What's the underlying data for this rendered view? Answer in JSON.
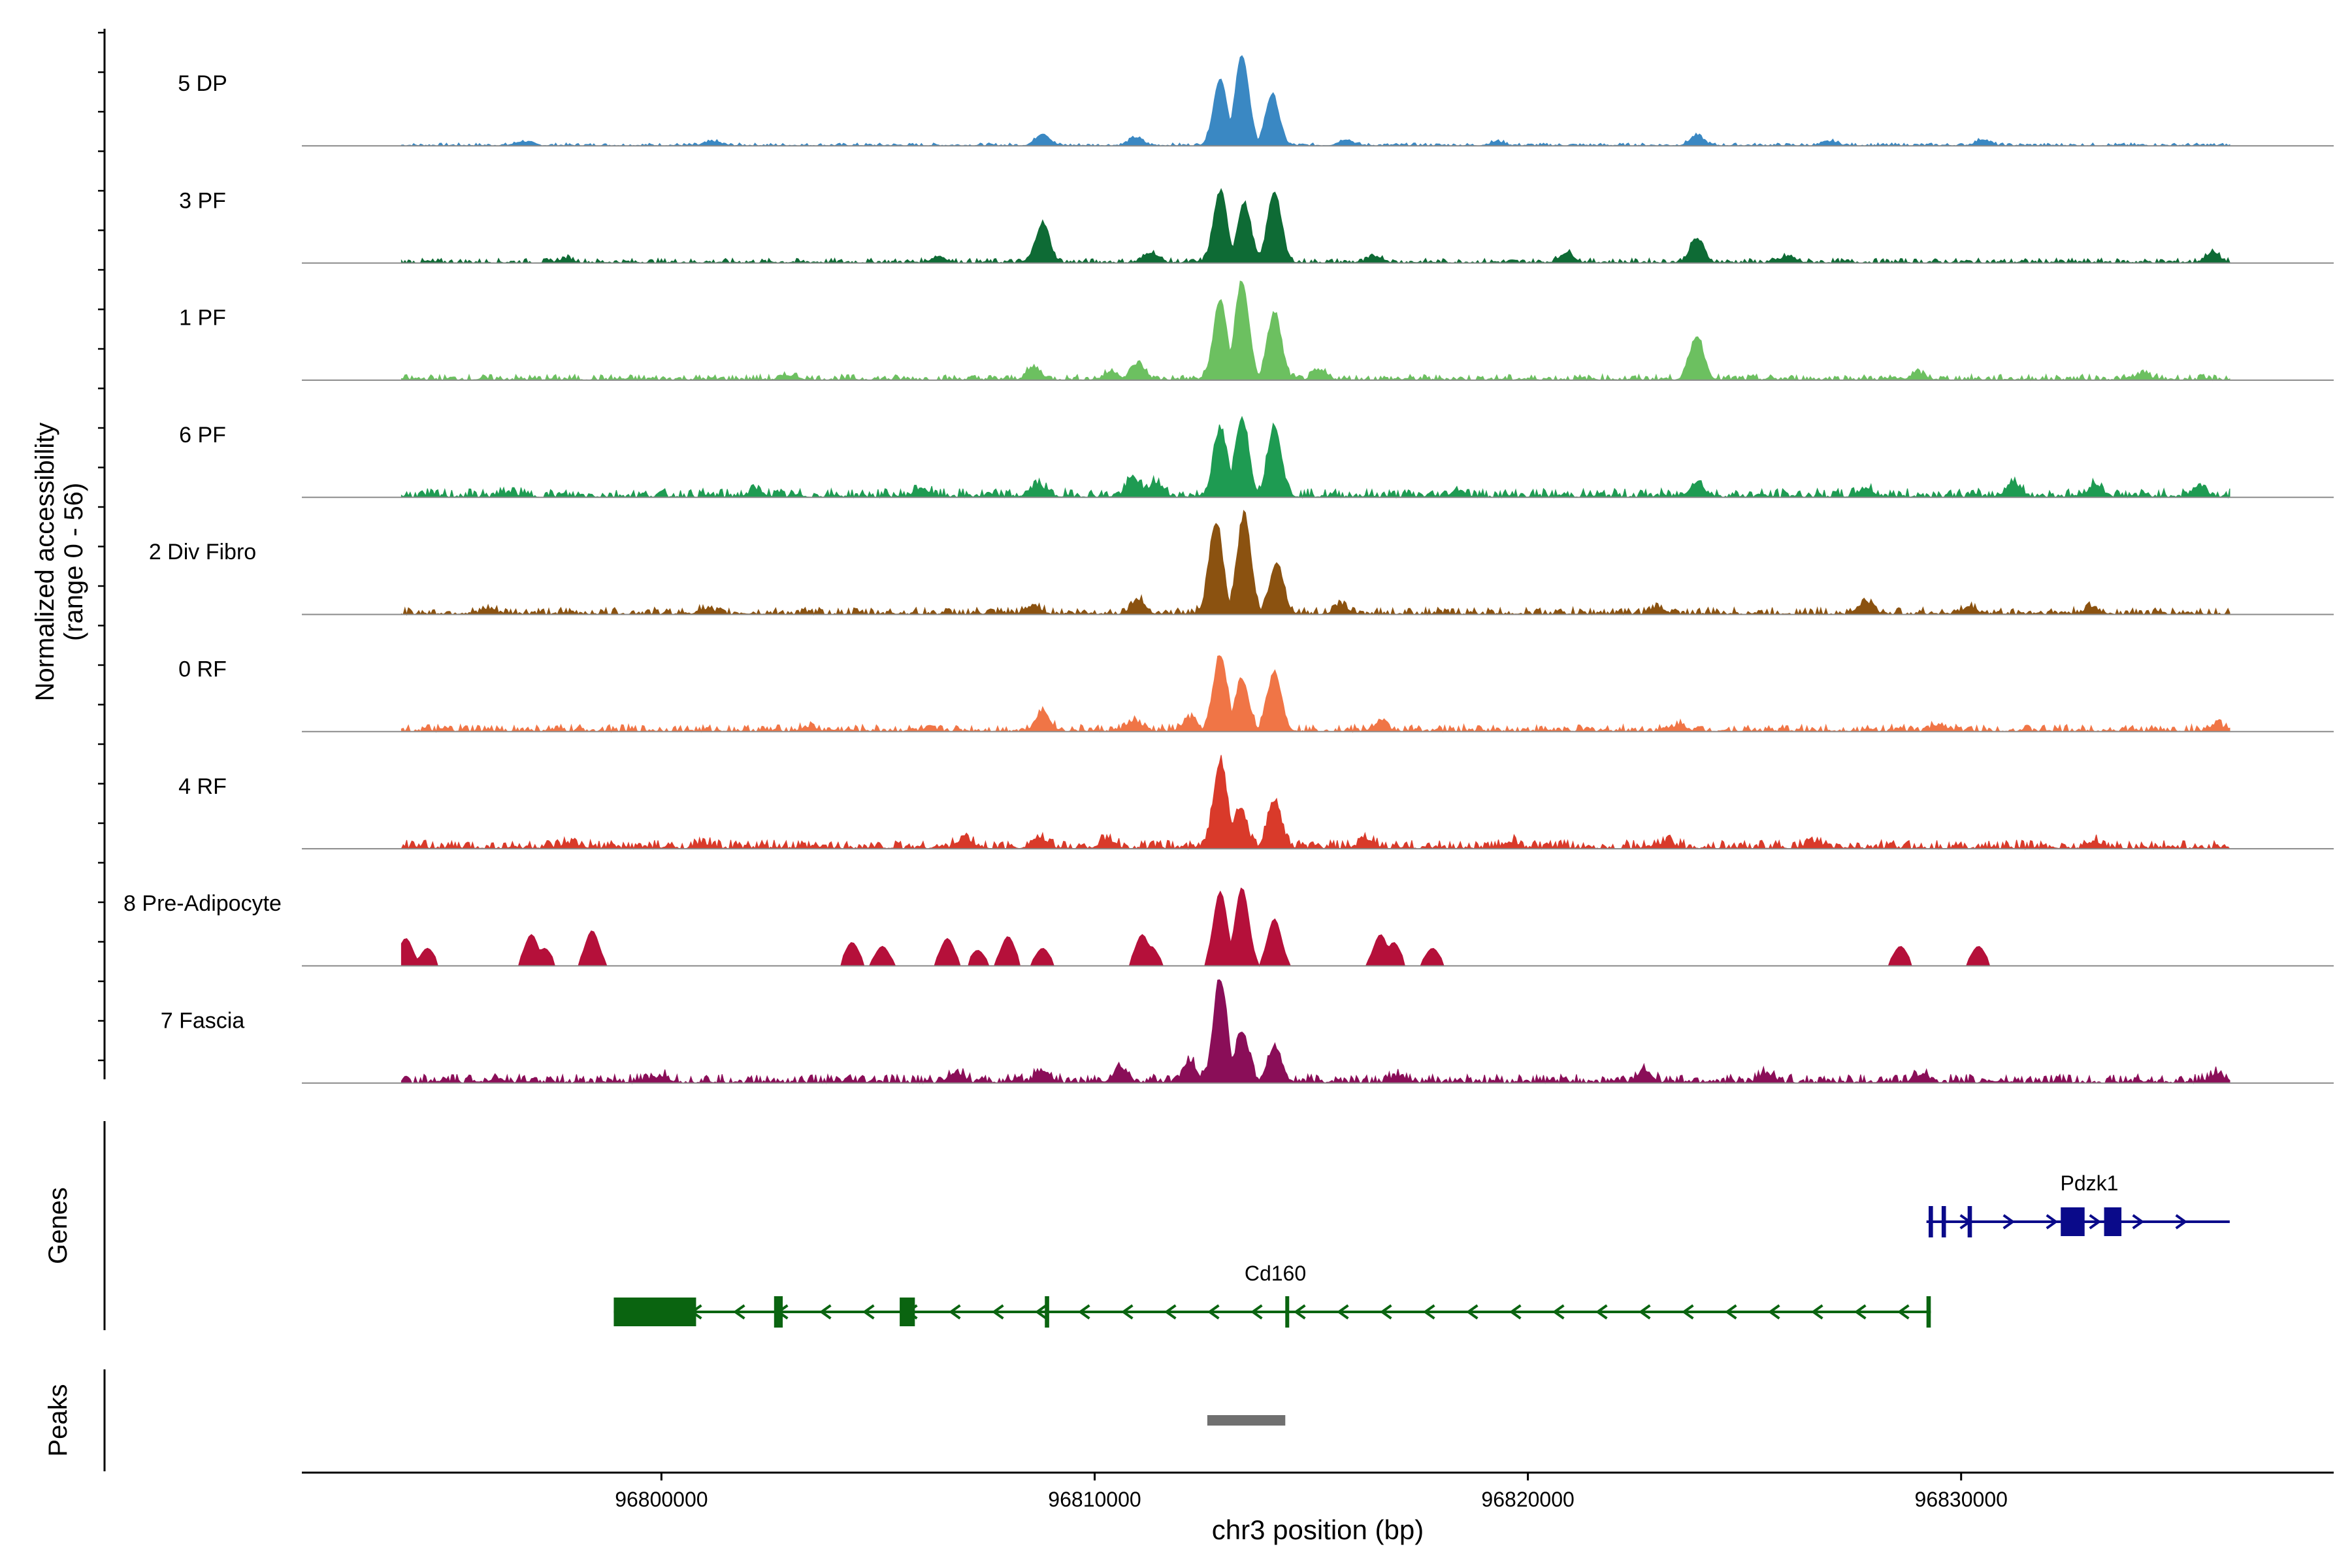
{
  "chart_data": {
    "type": "area",
    "title": "",
    "ylabel_line1": "Normalized accessibility",
    "ylabel_line2": "(range 0 - 56)",
    "ylim": [
      0,
      56
    ],
    "xlabel": "chr3 position (bp)",
    "xlim": [
      96791700,
      96838600
    ],
    "xticks": [
      {
        "value": 96800000,
        "label": "96800000"
      },
      {
        "value": 96810000,
        "label": "96810000"
      },
      {
        "value": 96820000,
        "label": "96820000"
      },
      {
        "value": 96830000,
        "label": "96830000"
      }
    ],
    "signal_range": [
      96794000,
      96836200
    ],
    "series": [
      {
        "name": "5 DP",
        "color": "#3A88C3",
        "baseline": 0.5,
        "peaks": [
          [
            96812900,
            34
          ],
          [
            96813400,
            46
          ],
          [
            96814100,
            26
          ],
          [
            96810950,
            4
          ],
          [
            96808800,
            6
          ],
          [
            96823900,
            5
          ],
          [
            96830500,
            3
          ],
          [
            96815800,
            3
          ],
          [
            96796800,
            2
          ],
          [
            96801200,
            2
          ],
          [
            96819300,
            2
          ],
          [
            96827000,
            2
          ]
        ]
      },
      {
        "name": "3 PF",
        "color": "#0E6B35",
        "baseline": 0.8,
        "peaks": [
          [
            96812900,
            36
          ],
          [
            96813450,
            30
          ],
          [
            96814150,
            36
          ],
          [
            96808800,
            20
          ],
          [
            96811300,
            5
          ],
          [
            96823900,
            12
          ],
          [
            96820900,
            5
          ],
          [
            96835800,
            5
          ],
          [
            96806400,
            3
          ],
          [
            96826000,
            3
          ],
          [
            96816500,
            3
          ],
          [
            96797800,
            2
          ]
        ]
      },
      {
        "name": "1 PF",
        "color": "#6CC060",
        "baseline": 1.0,
        "peaks": [
          [
            96812900,
            40
          ],
          [
            96813400,
            50
          ],
          [
            96814150,
            34
          ],
          [
            96823900,
            22
          ],
          [
            96811000,
            8
          ],
          [
            96808600,
            6
          ],
          [
            96810400,
            4
          ],
          [
            96815200,
            4
          ],
          [
            96829000,
            3
          ],
          [
            96834200,
            3
          ],
          [
            96803000,
            2
          ]
        ]
      },
      {
        "name": "6 PF",
        "color": "#1E9B52",
        "baseline": 1.5,
        "peaks": [
          [
            96812900,
            34
          ],
          [
            96813400,
            40
          ],
          [
            96814150,
            36
          ],
          [
            96808700,
            6
          ],
          [
            96810900,
            9
          ],
          [
            96811400,
            7
          ],
          [
            96823900,
            7
          ],
          [
            96831200,
            7
          ],
          [
            96833100,
            6
          ],
          [
            96835500,
            5
          ],
          [
            96806000,
            4
          ],
          [
            96802200,
            3
          ],
          [
            96818400,
            3
          ],
          [
            96827800,
            4
          ],
          [
            96796500,
            2
          ]
        ]
      },
      {
        "name": "2 Div Fibro",
        "color": "#8B5210",
        "baseline": 1.2,
        "peaks": [
          [
            96812800,
            46
          ],
          [
            96813450,
            50
          ],
          [
            96814200,
            26
          ],
          [
            96811000,
            7
          ],
          [
            96808600,
            4
          ],
          [
            96815700,
            4
          ],
          [
            96827800,
            6
          ],
          [
            96830200,
            3
          ],
          [
            96823000,
            3
          ],
          [
            96833000,
            3
          ],
          [
            96801000,
            2
          ],
          [
            96796000,
            2
          ]
        ]
      },
      {
        "name": "0 RF",
        "color": "#F07546",
        "baseline": 1.2,
        "peaks": [
          [
            96812900,
            38
          ],
          [
            96813400,
            26
          ],
          [
            96814150,
            30
          ],
          [
            96808800,
            10
          ],
          [
            96810900,
            5
          ],
          [
            96812200,
            6
          ],
          [
            96816600,
            4
          ],
          [
            96823500,
            3
          ],
          [
            96829500,
            3
          ],
          [
            96835900,
            3
          ],
          [
            96803400,
            2
          ]
        ]
      },
      {
        "name": "4 RF",
        "color": "#D93A2A",
        "baseline": 1.5,
        "peaks": [
          [
            96812900,
            44
          ],
          [
            96813350,
            20
          ],
          [
            96814150,
            24
          ],
          [
            96808700,
            5
          ],
          [
            96807000,
            5
          ],
          [
            96810300,
            4
          ],
          [
            96816300,
            4
          ],
          [
            96819600,
            3
          ],
          [
            96823200,
            3
          ],
          [
            96826600,
            3
          ],
          [
            96833100,
            3
          ],
          [
            96801000,
            2
          ],
          [
            96797900,
            2
          ]
        ]
      },
      {
        "name": "8 Pre-Adipocyte",
        "color": "#B5103A",
        "baseline": 0,
        "peaks": [
          [
            96812900,
            38
          ],
          [
            96813400,
            40
          ],
          [
            96814150,
            24
          ],
          [
            96794100,
            14
          ],
          [
            96794600,
            9
          ],
          [
            96797000,
            16
          ],
          [
            96797300,
            9
          ],
          [
            96798400,
            18
          ],
          [
            96808000,
            15
          ],
          [
            96808800,
            9
          ],
          [
            96811100,
            16
          ],
          [
            96811300,
            10
          ],
          [
            96816600,
            16
          ],
          [
            96816900,
            12
          ],
          [
            96817800,
            9
          ],
          [
            96804400,
            12
          ],
          [
            96805100,
            10
          ],
          [
            96806600,
            14
          ],
          [
            96807300,
            8
          ],
          [
            96828600,
            10
          ],
          [
            96830400,
            10
          ],
          [
            96801500,
            0
          ]
        ]
      },
      {
        "name": "7 Fascia",
        "color": "#8A0E58",
        "baseline": 1.5,
        "peaks": [
          [
            96812900,
            52
          ],
          [
            96813400,
            26
          ],
          [
            96814150,
            18
          ],
          [
            96812200,
            10
          ],
          [
            96808800,
            6
          ],
          [
            96810600,
            7
          ],
          [
            96806800,
            5
          ],
          [
            96822700,
            6
          ],
          [
            96825500,
            4
          ],
          [
            96835900,
            4
          ],
          [
            96829100,
            4
          ],
          [
            96800000,
            3
          ],
          [
            96796200,
            2
          ],
          [
            96817000,
            3
          ]
        ]
      }
    ]
  },
  "genes_panel": {
    "label": "Genes",
    "genes": [
      {
        "name": "Pdzk1",
        "strand": "+",
        "color": "#0A0A8A",
        "start": 96829200,
        "end": 96836200,
        "exons": [
          [
            96829250,
            96829350
          ],
          [
            96829550,
            96829650
          ],
          [
            96830150,
            96830250
          ],
          [
            96832300,
            96832850
          ],
          [
            96833300,
            96833700
          ]
        ]
      },
      {
        "name": "Cd160",
        "strand": "-",
        "color": "#0A6410",
        "start": 96798900,
        "end": 96829300,
        "exons": [
          [
            96798900,
            96800800
          ],
          [
            96802600,
            96802800
          ],
          [
            96805500,
            96805850
          ],
          [
            96808850,
            96808950
          ],
          [
            96814400,
            96814460
          ],
          [
            96829200,
            96829300
          ]
        ]
      }
    ]
  },
  "peaks_panel": {
    "label": "Peaks",
    "peaks": [
      {
        "start": 96812600,
        "end": 96814400
      }
    ],
    "color": "#707070"
  }
}
